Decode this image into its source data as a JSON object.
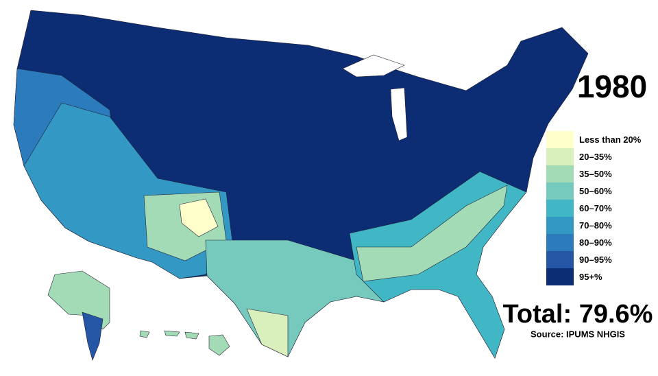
{
  "title": "1980",
  "legend": [
    {
      "label": "Less than 20%",
      "color": "#ffffcc"
    },
    {
      "label": "20–35%",
      "color": "#d9f0bd"
    },
    {
      "label": "35–50%",
      "color": "#a3dbb7"
    },
    {
      "label": "50–60%",
      "color": "#76c9bd"
    },
    {
      "label": "60–70%",
      "color": "#41b6c4"
    },
    {
      "label": "70–80%",
      "color": "#3398c4"
    },
    {
      "label": "80–90%",
      "color": "#2b7bbd"
    },
    {
      "label": "90–95%",
      "color": "#2556a5"
    },
    {
      "label": "95+%",
      "color": "#0c2c73"
    }
  ],
  "total": "Total: 79.6%",
  "source": "Source: IPUMS NHGIS"
}
